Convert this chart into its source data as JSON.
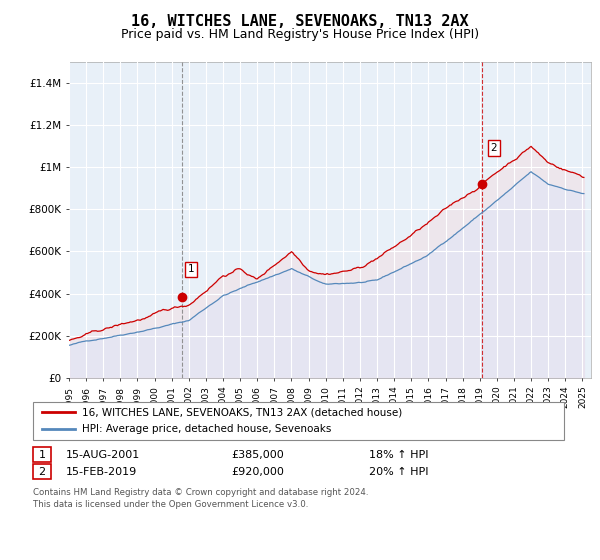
{
  "title": "16, WITCHES LANE, SEVENOAKS, TN13 2AX",
  "subtitle": "Price paid vs. HM Land Registry's House Price Index (HPI)",
  "title_fontsize": 11,
  "subtitle_fontsize": 9,
  "ylabel_ticks": [
    "£0",
    "£200K",
    "£400K",
    "£600K",
    "£800K",
    "£1M",
    "£1.2M",
    "£1.4M"
  ],
  "ytick_values": [
    0,
    200000,
    400000,
    600000,
    800000,
    1000000,
    1200000,
    1400000
  ],
  "ylim": [
    0,
    1500000
  ],
  "xlim_start": 1995.0,
  "xlim_end": 2025.5,
  "line_color_red": "#cc0000",
  "line_color_blue": "#5588bb",
  "fill_color_blue": "#ddeeff",
  "background_color": "#ffffff",
  "plot_bg_color": "#e8f0f8",
  "grid_color": "#ffffff",
  "transaction1_x": 2001.622,
  "transaction1_value": 385000,
  "transaction2_x": 2019.122,
  "transaction2_value": 920000,
  "legend_line1": "16, WITCHES LANE, SEVENOAKS, TN13 2AX (detached house)",
  "legend_line2": "HPI: Average price, detached house, Sevenoaks",
  "table_row1": [
    "1",
    "15-AUG-2001",
    "£385,000",
    "18% ↑ HPI"
  ],
  "table_row2": [
    "2",
    "15-FEB-2019",
    "£920,000",
    "20% ↑ HPI"
  ],
  "footnote1": "Contains HM Land Registry data © Crown copyright and database right 2024.",
  "footnote2": "This data is licensed under the Open Government Licence v3.0."
}
